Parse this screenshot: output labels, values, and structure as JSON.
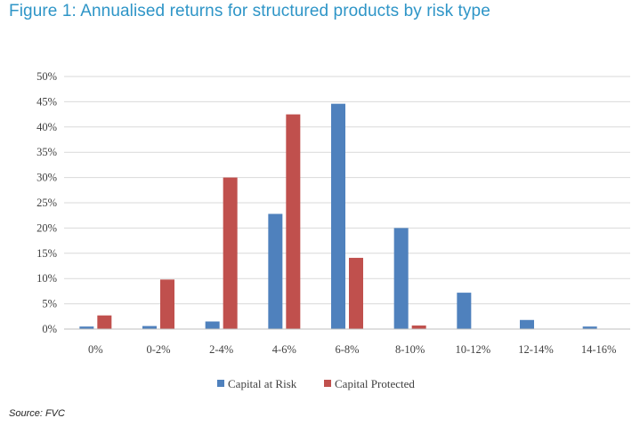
{
  "figure_title": "Figure 1: Annualised returns for structured products by risk type",
  "source": "Source: FVC",
  "colors": {
    "title": "#2e95c7",
    "capital_at_risk": "#4f81bd",
    "capital_protected": "#c0504d",
    "grid": "#d9d9d9",
    "axis": "#bfbfbf"
  },
  "chart_data": {
    "type": "bar",
    "title": "",
    "xlabel": "",
    "ylabel": "",
    "categories": [
      "0%",
      "0-2%",
      "2-4%",
      "4-6%",
      "6-8%",
      "8-10%",
      "10-12%",
      "12-14%",
      "14-16%"
    ],
    "series": [
      {
        "name": "Capital at Risk",
        "values": [
          0.5,
          0.6,
          1.5,
          22.8,
          44.6,
          20.0,
          7.2,
          1.8,
          0.5
        ]
      },
      {
        "name": "Capital Protected",
        "values": [
          2.7,
          9.8,
          30.0,
          42.5,
          14.1,
          0.7,
          0,
          0,
          0
        ]
      }
    ],
    "ylim": [
      0,
      50
    ],
    "yticks": [
      "0%",
      "5%",
      "10%",
      "15%",
      "20%",
      "25%",
      "30%",
      "35%",
      "40%",
      "45%",
      "50%"
    ],
    "grid": true,
    "legend_position": "bottom"
  }
}
